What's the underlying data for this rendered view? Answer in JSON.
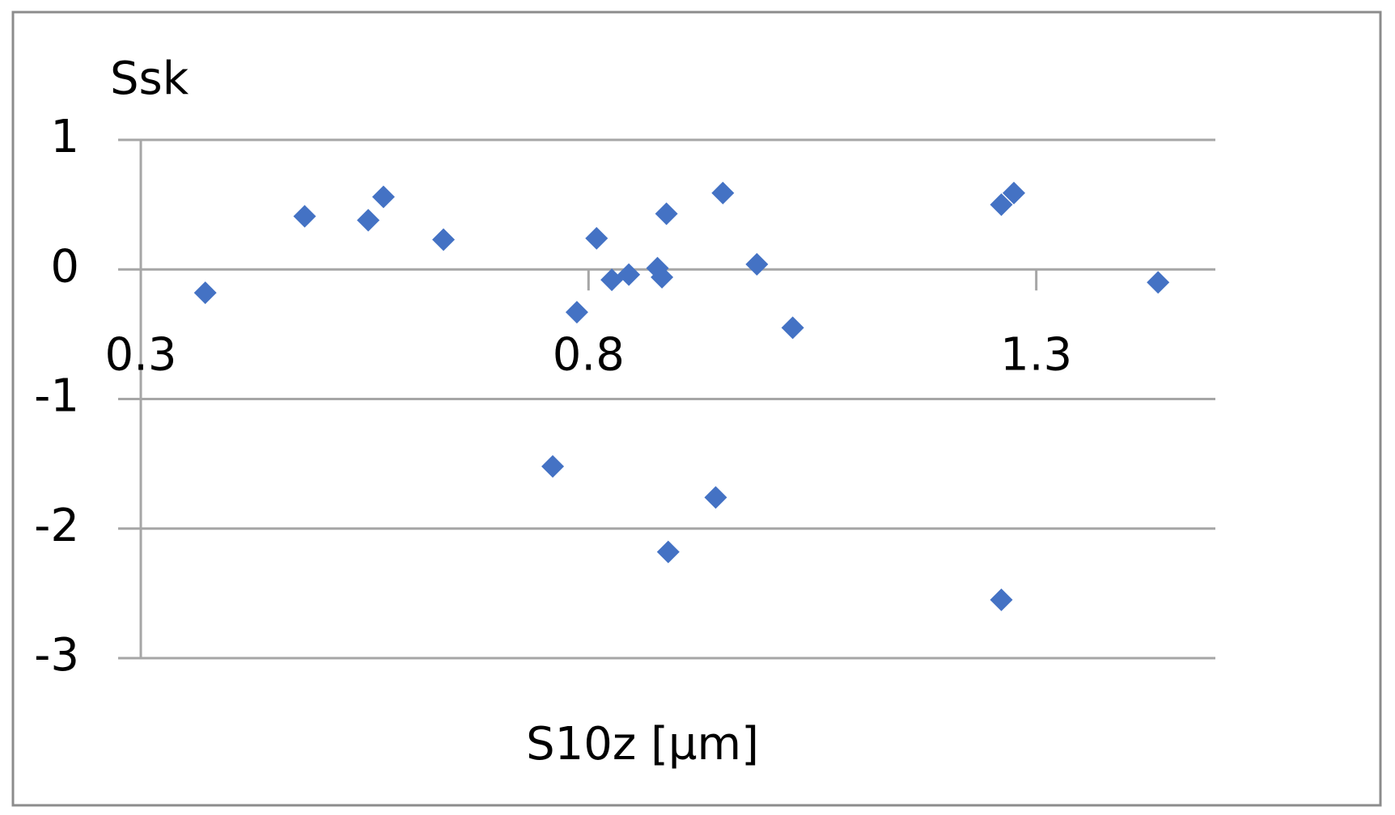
{
  "chart_data": {
    "type": "scatter",
    "title": "Ssk",
    "x_label": "S10z [µm]",
    "x": [
      0.372,
      0.483,
      0.554,
      0.571,
      0.638,
      0.76,
      0.787,
      0.809,
      0.826,
      0.845,
      0.877,
      0.882,
      0.887,
      0.889,
      0.942,
      0.95,
      0.988,
      1.028,
      1.261,
      1.275,
      1.261,
      1.436
    ],
    "values": [
      -0.18,
      0.41,
      0.38,
      0.56,
      0.23,
      -1.52,
      -0.33,
      0.24,
      -0.08,
      -0.04,
      0.01,
      -0.06,
      0.43,
      -2.18,
      -1.76,
      0.59,
      0.04,
      -0.45,
      0.5,
      0.59,
      -2.55,
      -0.1
    ],
    "color": "#4472c4",
    "xlim": [
      0.3,
      1.5
    ],
    "xticks": [
      0.3,
      0.8,
      1.3
    ],
    "ylim": [
      -3,
      1
    ],
    "yticks": [
      -3,
      -2,
      -1,
      0,
      1
    ],
    "grid": true
  }
}
